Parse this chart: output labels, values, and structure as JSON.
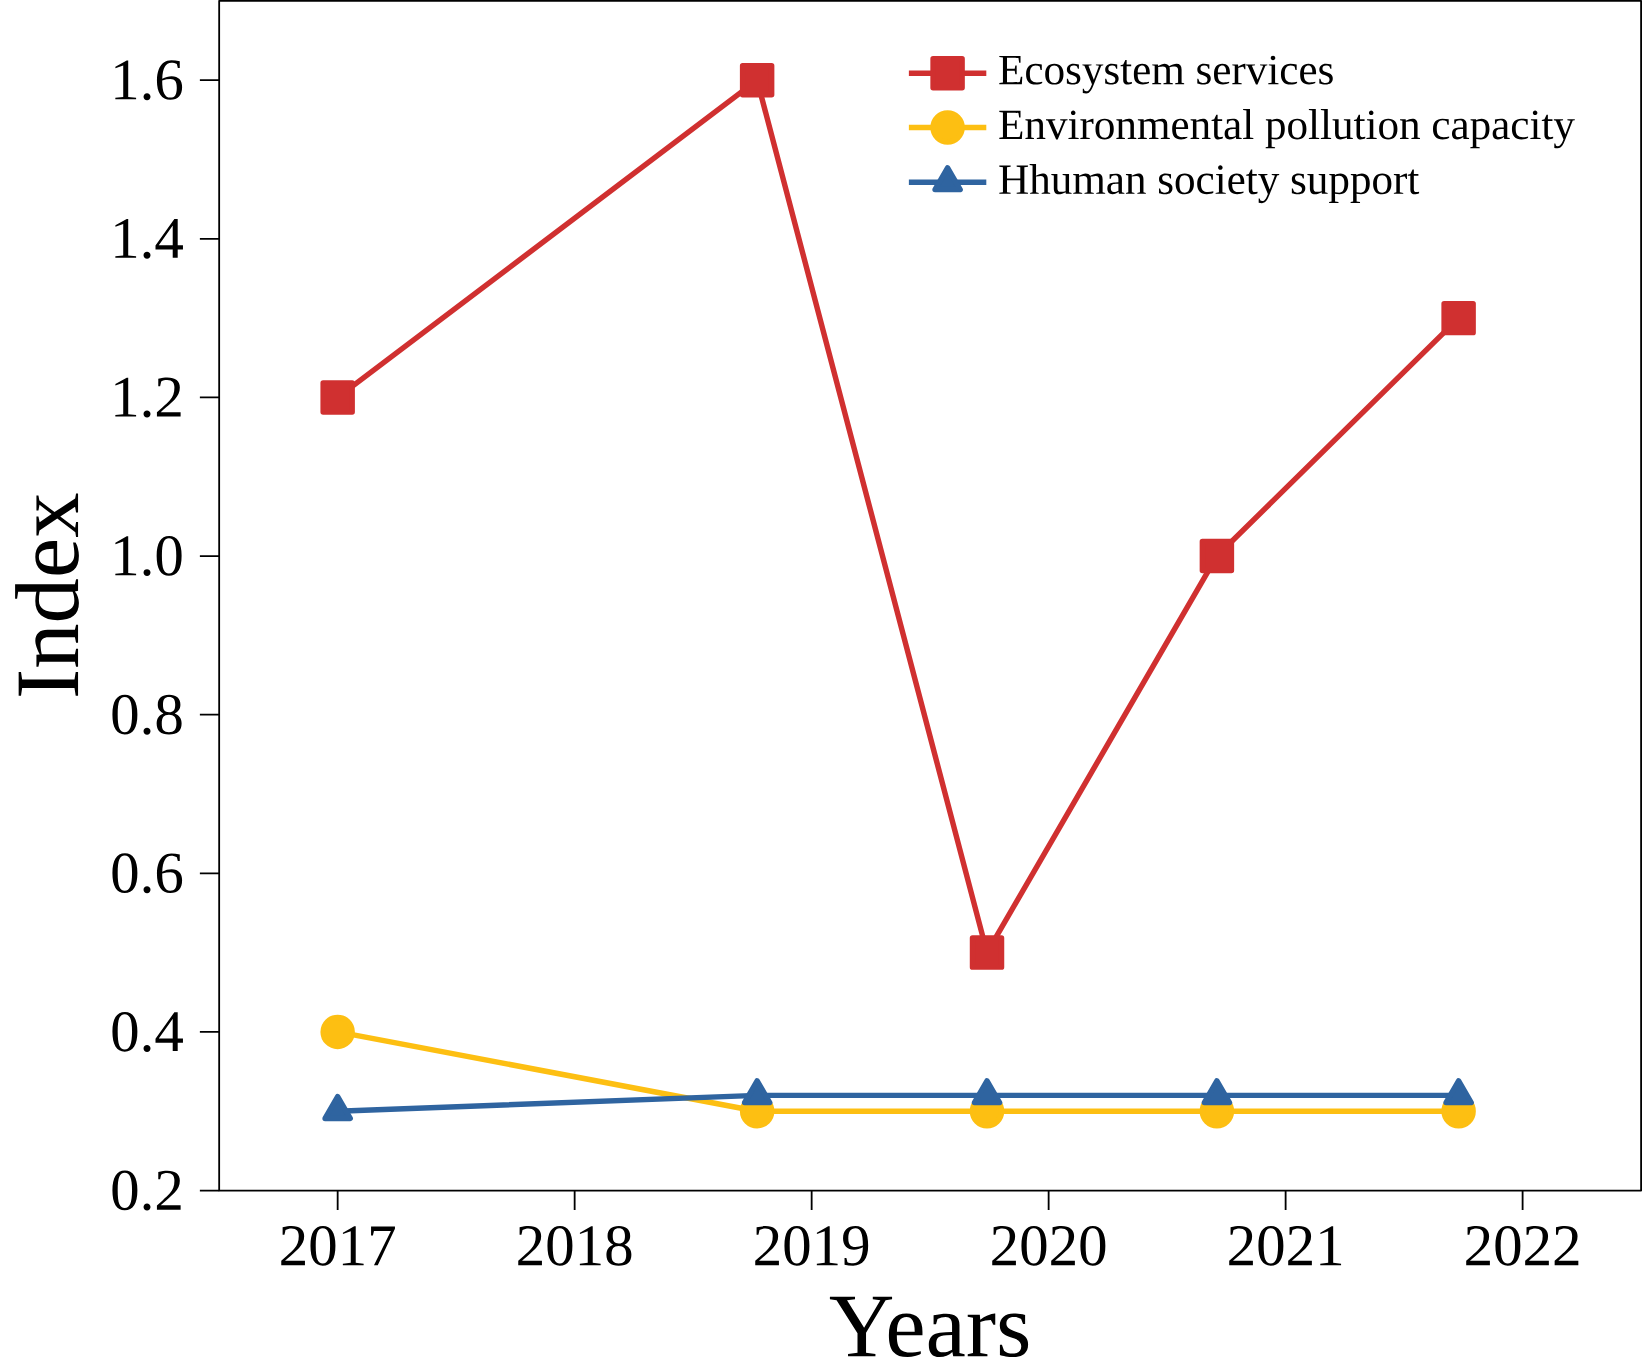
{
  "chart_data": {
    "type": "line",
    "xlabel": "Years",
    "ylabel": "Index",
    "series": [
      {
        "name": "Ecosystem services",
        "color": "#d03030",
        "marker": "square",
        "x": [
          2017,
          2018.77,
          2019.74,
          2020.71,
          2021.73
        ],
        "values": [
          1.2,
          1.6,
          0.5,
          1.0,
          1.3
        ]
      },
      {
        "name": "Environmental pollution capacity",
        "color": "#fdbf12",
        "marker": "circle",
        "x": [
          2017,
          2018.77,
          2019.74,
          2020.71,
          2021.73
        ],
        "values": [
          0.4,
          0.3,
          0.3,
          0.3,
          0.3
        ]
      },
      {
        "name": "Hhuman society support",
        "color": "#2f64a0",
        "marker": "triangle",
        "x": [
          2017,
          2018.77,
          2019.74,
          2020.71,
          2021.73
        ],
        "values": [
          0.3,
          0.32,
          0.32,
          0.32,
          0.32
        ]
      }
    ],
    "xlim": [
      2016.5,
      2022.5
    ],
    "xticks": [
      2017,
      2018,
      2019,
      2020,
      2021,
      2022
    ],
    "ylim": [
      0.2,
      1.7
    ],
    "yticks": [
      0.2,
      0.4,
      0.6,
      0.8,
      {
        "value": 1.0,
        "label": "1.0"
      },
      1.2,
      1.4,
      1.6
    ],
    "grid": false,
    "legend": "top right",
    "line_style": "solid"
  }
}
